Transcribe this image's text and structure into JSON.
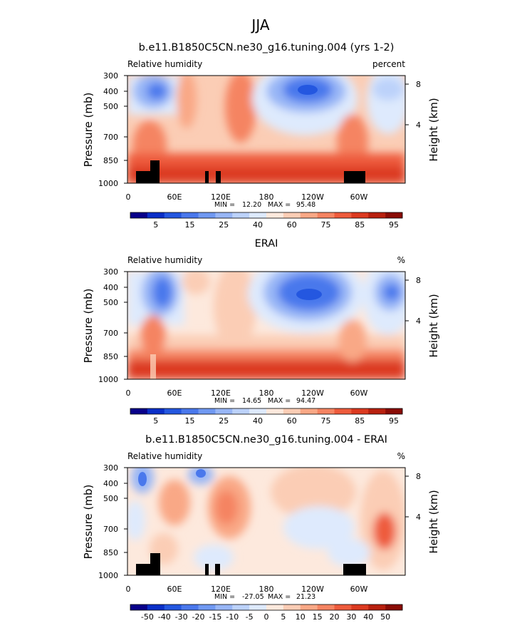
{
  "figure": {
    "title": "JJA",
    "stats_labels": {
      "min": "MIN =",
      "max": "MAX ="
    }
  },
  "chart_data": [
    {
      "type": "heatmap",
      "title": "b.e11.B1850C5CN.ne30_g16.tuning.004 (yrs 1-2)",
      "left_label": "Relative humidity",
      "right_label": "percent",
      "ylabel": "Pressure (mb)",
      "ylabel_right": "Height (km)",
      "x_ticks": [
        "0",
        "60E",
        "120E",
        "180",
        "120W",
        "60W"
      ],
      "y_ticks": [
        "300",
        "400",
        "500",
        "700",
        "850",
        "1000"
      ],
      "y_ticks_right": [
        "8",
        "4"
      ],
      "min": "12.20",
      "max": "95.48",
      "colorbar": {
        "labels": [
          "5",
          "15",
          "25",
          "40",
          "60",
          "75",
          "85",
          "95"
        ],
        "colors": [
          "#08008a",
          "#0a2fc8",
          "#2457e0",
          "#4a78ec",
          "#7099f2",
          "#98b6f6",
          "#bcd2fa",
          "#deeafd",
          "#fde9dd",
          "#fbcdb5",
          "#f9a886",
          "#f58462",
          "#ee5b3c",
          "#dc3a20",
          "#b8200f",
          "#8a0c05"
        ]
      }
    },
    {
      "type": "heatmap",
      "title": "ERAI",
      "left_label": "Relative humidity",
      "right_label": "%",
      "ylabel": "Pressure (mb)",
      "ylabel_right": "Height (km)",
      "x_ticks": [
        "0",
        "60E",
        "120E",
        "180",
        "120W",
        "60W"
      ],
      "y_ticks": [
        "300",
        "400",
        "500",
        "700",
        "850",
        "1000"
      ],
      "y_ticks_right": [
        "8",
        "4"
      ],
      "min": "14.65",
      "max": "94.47",
      "colorbar": {
        "labels": [
          "5",
          "15",
          "25",
          "40",
          "60",
          "75",
          "85",
          "95"
        ],
        "colors": [
          "#08008a",
          "#0a2fc8",
          "#2457e0",
          "#4a78ec",
          "#7099f2",
          "#98b6f6",
          "#bcd2fa",
          "#deeafd",
          "#fde9dd",
          "#fbcdb5",
          "#f9a886",
          "#f58462",
          "#ee5b3c",
          "#dc3a20",
          "#b8200f",
          "#8a0c05"
        ]
      }
    },
    {
      "type": "heatmap",
      "title": "b.e11.B1850C5CN.ne30_g16.tuning.004 - ERAI",
      "left_label": "Relative humidity",
      "right_label": "%",
      "ylabel": "Pressure (mb)",
      "ylabel_right": "Height (km)",
      "x_ticks": [
        "0",
        "60E",
        "120E",
        "180",
        "120W",
        "60W"
      ],
      "y_ticks": [
        "300",
        "400",
        "500",
        "700",
        "850",
        "1000"
      ],
      "y_ticks_right": [
        "8",
        "4"
      ],
      "min": "-27.05",
      "max": "21.23",
      "colorbar": {
        "labels": [
          "-50",
          "-40",
          "-30",
          "-20",
          "-15",
          "-10",
          "-5",
          "0",
          "5",
          "10",
          "15",
          "20",
          "30",
          "40",
          "50"
        ],
        "colors": [
          "#08008a",
          "#0a2fc8",
          "#2457e0",
          "#4a78ec",
          "#7099f2",
          "#98b6f6",
          "#bcd2fa",
          "#deeafd",
          "#fde9dd",
          "#fbcdb5",
          "#f9a886",
          "#f58462",
          "#ee5b3c",
          "#dc3a20",
          "#b8200f",
          "#8a0c05"
        ]
      }
    }
  ]
}
